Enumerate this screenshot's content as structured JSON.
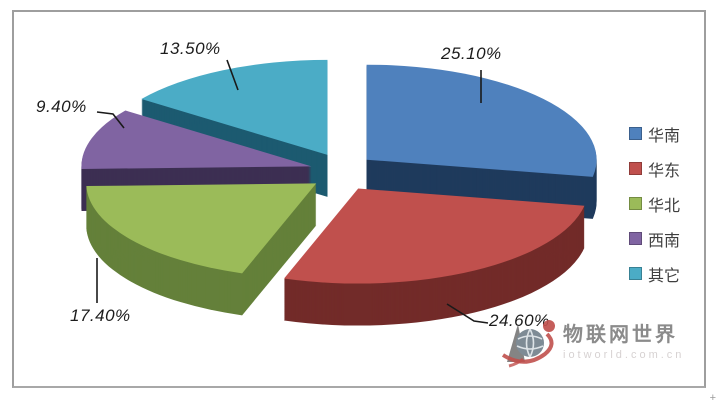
{
  "page": {
    "background": "#ffffff",
    "plot_border_color": "#9e9e9e"
  },
  "chart_data": {
    "type": "pie",
    "style": "3d-exploded",
    "title": "",
    "categories": [
      "华南",
      "华东",
      "华北",
      "西南",
      "其它"
    ],
    "values": [
      25.1,
      24.6,
      17.4,
      9.4,
      13.5
    ],
    "labels": [
      "25.10%",
      "24.60%",
      "17.40%",
      "9.40%",
      "13.50%"
    ],
    "colors": [
      "#4F81BD",
      "#C0504D",
      "#9BBB59",
      "#8064A2",
      "#4BACC6"
    ],
    "side_colors": [
      "#1F3A5C",
      "#722B29",
      "#64803A",
      "#3C2F52",
      "#1C5A70"
    ],
    "start_angle_deg": -90,
    "direction": "clockwise",
    "legend": {
      "position": "right",
      "entries": [
        "华南",
        "华东",
        "华北",
        "西南",
        "其它"
      ]
    }
  },
  "watermark": {
    "brand": "物联网世界",
    "subtext": "iotworld.com.cn",
    "logo": "iot-globe-logo"
  },
  "misc": {
    "corner_mark": "+"
  }
}
